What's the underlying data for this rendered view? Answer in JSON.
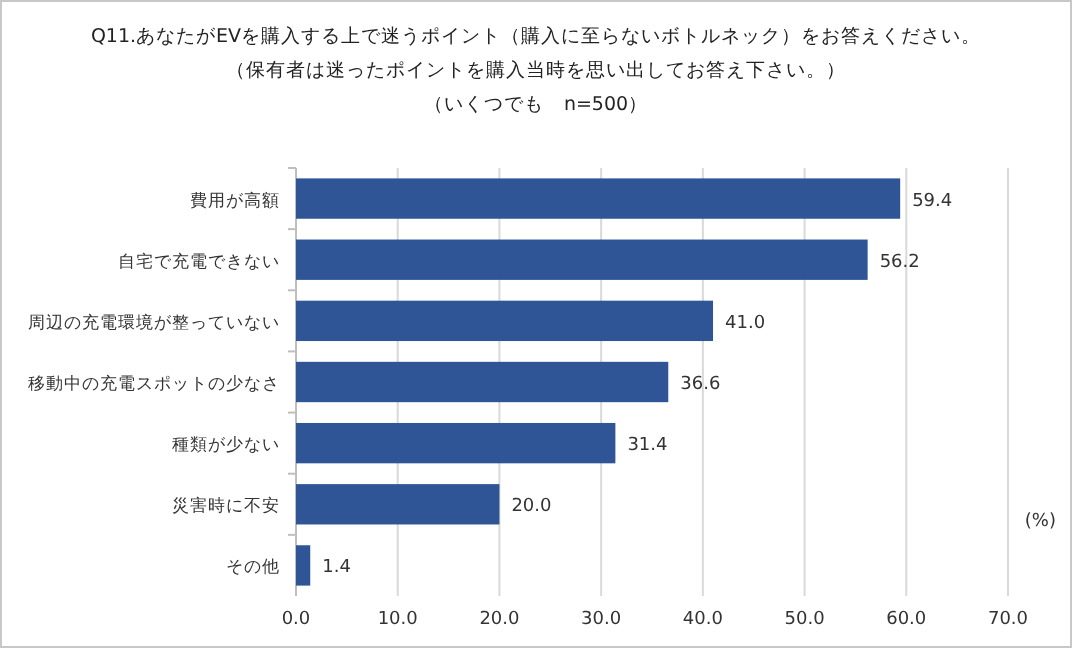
{
  "chart_data": {
    "type": "bar",
    "orientation": "horizontal",
    "title": "Q11.あなたがEVを購入する上で迷うポイント（購入に至らないボトルネック）をお答えください。（保有者は迷ったポイントを購入当時を思い出してお答え下さい。）",
    "subtitle": "（いくつでも　n=500）",
    "xlabel": "(%)",
    "categories": [
      "費用が高額",
      "自宅で充電できない",
      "周辺の充電環境が整っていない",
      "移動中の充電スポットの少なさ",
      "種類が少ない",
      "災害時に不安",
      "その他"
    ],
    "values": [
      59.4,
      56.2,
      41.0,
      36.6,
      31.4,
      20.0,
      1.4
    ],
    "value_labels": [
      "59.4",
      "56.2",
      "41.0",
      "36.6",
      "31.4",
      "20.0",
      "1.4"
    ],
    "color": "#2f5597",
    "xlim": [
      0,
      70
    ],
    "xticks": [
      {
        "value": 0,
        "label": "0.0"
      },
      {
        "value": 10,
        "label": "10.0"
      },
      {
        "value": 20,
        "label": "20.0"
      },
      {
        "value": 30,
        "label": "30.0"
      },
      {
        "value": 40,
        "label": "40.0"
      },
      {
        "value": 50,
        "label": "50.0"
      },
      {
        "value": 60,
        "label": "60.0"
      },
      {
        "value": 70,
        "label": "70.0"
      }
    ],
    "grid": "x"
  }
}
